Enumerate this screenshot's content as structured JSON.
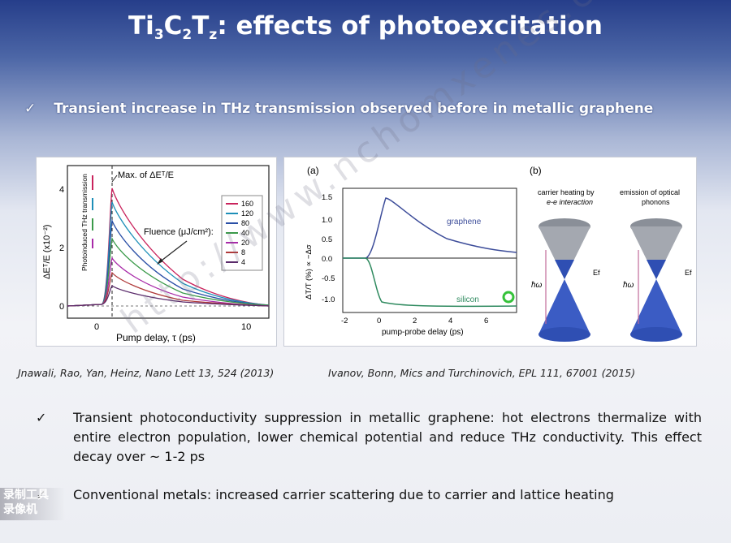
{
  "title": {
    "main": "Ti",
    "sub1": "3",
    "mid1": "C",
    "sub2": "2",
    "mid2": "T",
    "sub3": "z",
    "rest": ": effects of photoexcitation"
  },
  "bullet_top": {
    "check": "✓",
    "text": "Transient increase in THz transmission observed before in metallic graphene"
  },
  "figure_left": {
    "annotation": "Max. of ΔEᵀ/E",
    "fluence_label": "Fluence (μJ/cm²):",
    "ylabel": "ΔEᵀ/E (x10⁻²)",
    "inset_label": "Photoinduced THz transmission",
    "xlabel": "Pump delay, τ (ps)",
    "yticks": [
      "4",
      "2",
      "0"
    ],
    "xticks": [
      "0",
      "10"
    ],
    "legend": [
      "160",
      "120",
      "80",
      "40",
      "20",
      "8",
      "4"
    ]
  },
  "figure_right": {
    "panel_a": "(a)",
    "panel_b": "(b)",
    "ylabel": "ΔT/T (%) ∝ −Δσ",
    "xlabel": "pump-probe delay (ps)",
    "xticks": [
      "-2",
      "0",
      "2",
      "4",
      "6"
    ],
    "yticks": [
      "1.5",
      "1.0",
      "0.5",
      "0.0",
      "-0.5",
      "-1.0"
    ],
    "graphene_label": "graphene",
    "silicon_label": "silicon",
    "cone1_title_line1": "carrier heating by",
    "cone1_title_line2": "e-e interaction",
    "cone2_title_line1": "emission of optical",
    "cone2_title_line2": "phonons",
    "hw": "ħω",
    "ef": "Ef"
  },
  "citation_left": "Jnawali, Rao, Yan, Heinz, Nano Lett 13, 524 (2013)",
  "citation_right": "Ivanov, Bonn, Mics and Turchinovich, EPL 111, 67001 (2015)",
  "bullet_2": {
    "check": "✓",
    "text": "Transient photoconductivity suppression in metallic graphene: hot electrons thermalize with entire electron population, lower chemical potential and reduce THz conductivity.  This effect decay over ~ 1-2 ps"
  },
  "bullet_3": {
    "check": "✓",
    "text": "Conventional metals: increased carrier scattering due to carrier and lattice heating"
  },
  "watermark": "http://www.nchomxenes.com",
  "recorder": {
    "line1": "录制工具",
    "line2": "录像机"
  },
  "colors": {
    "legend": [
      "#c9235c",
      "#1e8fb8",
      "#2a4fa6",
      "#3b9a4a",
      "#a82aa8",
      "#b03a3a",
      "#5a2a6a"
    ],
    "graphene": "#3d4d9a",
    "silicon": "#2f8a5f"
  }
}
